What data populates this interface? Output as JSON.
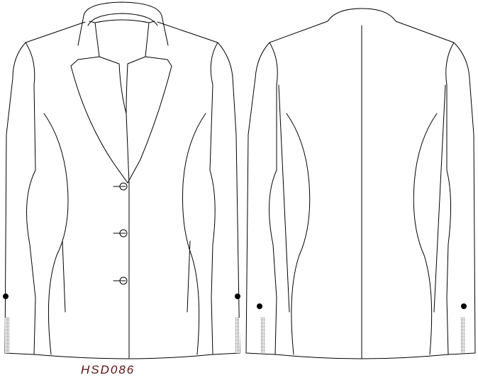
{
  "drawing": {
    "style_code": "HSD086",
    "label_color": "#5a1010",
    "line_color": "#000000",
    "background": "#ffffff",
    "views": [
      "front",
      "back"
    ],
    "front_button_count": 3,
    "cuff_button_count_per_view": 2
  }
}
